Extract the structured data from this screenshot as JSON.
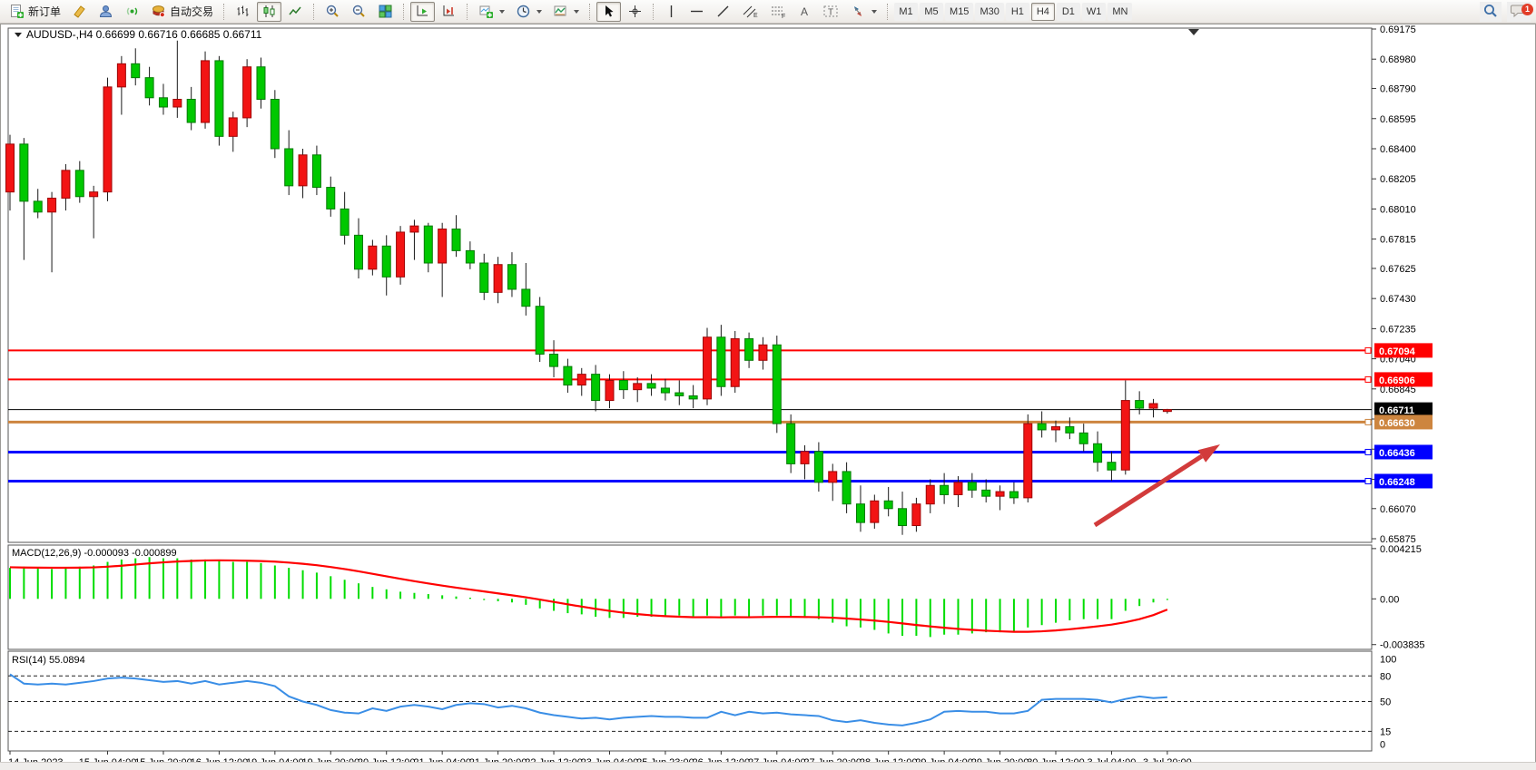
{
  "toolbar": {
    "labels": {
      "new_order": "新订单",
      "autotrading": "自动交易"
    },
    "glyphs": {
      "channel": "E",
      "fibo": "F",
      "text_tool": "A",
      "label_tool": "T"
    },
    "timeframes": [
      "M1",
      "M5",
      "M15",
      "M30",
      "H1",
      "H4",
      "D1",
      "W1",
      "MN"
    ],
    "active_timeframe": "H4",
    "notification_count": "1"
  },
  "chart": {
    "title_text": "AUDUSD-,H4  0.66699 0.66716 0.66685 0.66711",
    "symbol": "AUDUSD-,H4",
    "ohlc": {
      "open": "0.66699",
      "high": "0.66716",
      "low": "0.66685",
      "close": "0.66711"
    }
  },
  "chart_data": {
    "type": "candlestick",
    "symbol": "AUDUSD-",
    "timeframe": "H4",
    "price_axis_ticks": [
      "0.69175",
      "0.68980",
      "0.68790",
      "0.68595",
      "0.68400",
      "0.68205",
      "0.68010",
      "0.67815",
      "0.67625",
      "0.67430",
      "0.67235",
      "0.67040",
      "0.66845",
      "0.66650",
      "0.66455",
      "0.66260",
      "0.66070",
      "0.65875"
    ],
    "price_axis_range": [
      0.65875,
      0.69175
    ],
    "time_labels": [
      "14 Jun 2023",
      "15 Jun 04:00",
      "15 Jun 20:00",
      "16 Jun 12:00",
      "19 Jun 04:00",
      "19 Jun 20:00",
      "20 Jun 12:00",
      "21 Jun 04:00",
      "21 Jun 20:00",
      "22 Jun 12:00",
      "23 Jun 04:00",
      "25 Jun 23:00",
      "26 Jun 12:00",
      "27 Jun 04:00",
      "27 Jun 20:00",
      "28 Jun 12:00",
      "29 Jun 04:00",
      "29 Jun 20:00",
      "30 Jun 12:00",
      "3 Jul 04:00",
      "3 Jul 20:00"
    ],
    "time_label_candle_index": [
      0,
      7,
      11,
      15,
      19,
      23,
      27,
      31,
      35,
      39,
      43,
      47,
      51,
      55,
      59,
      63,
      67,
      71,
      75,
      79,
      83
    ],
    "hlines": [
      {
        "price": 0.67094,
        "label": "0.67094",
        "color": "#FF0000",
        "width": 2,
        "role": "resistance"
      },
      {
        "price": 0.66906,
        "label": "0.66906",
        "color": "#FF0000",
        "width": 2,
        "role": "resistance"
      },
      {
        "price": 0.66711,
        "label": "0.66711",
        "color": "#000000",
        "width": 1,
        "role": "current-price"
      },
      {
        "price": 0.6663,
        "label": "0.66630",
        "color": "#CD853F",
        "width": 3,
        "role": "level"
      },
      {
        "price": 0.66436,
        "label": "0.66436",
        "color": "#0000FF",
        "width": 3,
        "role": "support"
      },
      {
        "price": 0.66248,
        "label": "0.66248",
        "color": "#0000FF",
        "width": 3,
        "role": "support"
      }
    ],
    "candles": [
      [
        0.6812,
        0.6849,
        0.68,
        0.6843
      ],
      [
        0.6843,
        0.6847,
        0.6768,
        0.6806
      ],
      [
        0.6806,
        0.6814,
        0.6795,
        0.6799
      ],
      [
        0.6799,
        0.6812,
        0.676,
        0.6808
      ],
      [
        0.6808,
        0.683,
        0.68,
        0.6826
      ],
      [
        0.6826,
        0.6832,
        0.6805,
        0.6809
      ],
      [
        0.6809,
        0.6816,
        0.6782,
        0.6812
      ],
      [
        0.6812,
        0.6886,
        0.6806,
        0.688
      ],
      [
        0.688,
        0.69,
        0.6862,
        0.6895
      ],
      [
        0.6895,
        0.6905,
        0.6881,
        0.6886
      ],
      [
        0.6886,
        0.6893,
        0.6868,
        0.6873
      ],
      [
        0.6873,
        0.6882,
        0.6862,
        0.6867
      ],
      [
        0.6867,
        0.691,
        0.686,
        0.6872
      ],
      [
        0.6872,
        0.688,
        0.6852,
        0.6857
      ],
      [
        0.6857,
        0.6903,
        0.6853,
        0.6897
      ],
      [
        0.6897,
        0.69,
        0.6842,
        0.6848
      ],
      [
        0.6848,
        0.6864,
        0.6838,
        0.686
      ],
      [
        0.686,
        0.6898,
        0.6854,
        0.6893
      ],
      [
        0.6893,
        0.6899,
        0.6866,
        0.6872
      ],
      [
        0.6872,
        0.6878,
        0.6834,
        0.684
      ],
      [
        0.684,
        0.6852,
        0.681,
        0.6816
      ],
      [
        0.6816,
        0.684,
        0.6808,
        0.6836
      ],
      [
        0.6836,
        0.6842,
        0.681,
        0.6815
      ],
      [
        0.6815,
        0.6822,
        0.6796,
        0.6801
      ],
      [
        0.6801,
        0.6812,
        0.6778,
        0.6784
      ],
      [
        0.6784,
        0.6795,
        0.6756,
        0.6762
      ],
      [
        0.6762,
        0.6781,
        0.6758,
        0.6777
      ],
      [
        0.6777,
        0.6784,
        0.6745,
        0.6757
      ],
      [
        0.6757,
        0.679,
        0.6752,
        0.6786
      ],
      [
        0.6786,
        0.6794,
        0.6768,
        0.679
      ],
      [
        0.679,
        0.6792,
        0.676,
        0.6766
      ],
      [
        0.6766,
        0.6792,
        0.6744,
        0.6788
      ],
      [
        0.6788,
        0.6797,
        0.677,
        0.6774
      ],
      [
        0.6774,
        0.678,
        0.6762,
        0.6766
      ],
      [
        0.6766,
        0.6772,
        0.6742,
        0.6747
      ],
      [
        0.6747,
        0.677,
        0.674,
        0.6765
      ],
      [
        0.6765,
        0.6773,
        0.6744,
        0.6749
      ],
      [
        0.6749,
        0.6766,
        0.6732,
        0.6738
      ],
      [
        0.6738,
        0.6744,
        0.6702,
        0.6707
      ],
      [
        0.6707,
        0.6716,
        0.6692,
        0.6699
      ],
      [
        0.6699,
        0.6704,
        0.6682,
        0.6687
      ],
      [
        0.6687,
        0.6698,
        0.668,
        0.6694
      ],
      [
        0.6694,
        0.67,
        0.667,
        0.6677
      ],
      [
        0.6677,
        0.6694,
        0.6672,
        0.669
      ],
      [
        0.669,
        0.6696,
        0.6678,
        0.6684
      ],
      [
        0.6684,
        0.6692,
        0.6676,
        0.6688
      ],
      [
        0.6688,
        0.6694,
        0.668,
        0.6685
      ],
      [
        0.6685,
        0.6691,
        0.6677,
        0.6682
      ],
      [
        0.6682,
        0.669,
        0.6674,
        0.668
      ],
      [
        0.668,
        0.6687,
        0.6672,
        0.6678
      ],
      [
        0.6678,
        0.6724,
        0.6674,
        0.6718
      ],
      [
        0.6718,
        0.6726,
        0.668,
        0.6686
      ],
      [
        0.6686,
        0.6722,
        0.6682,
        0.6717
      ],
      [
        0.6717,
        0.6721,
        0.6698,
        0.6703
      ],
      [
        0.6703,
        0.6718,
        0.6697,
        0.6713
      ],
      [
        0.6713,
        0.6719,
        0.6656,
        0.6662
      ],
      [
        0.6662,
        0.6668,
        0.663,
        0.6636
      ],
      [
        0.6636,
        0.6648,
        0.6626,
        0.6644
      ],
      [
        0.6644,
        0.665,
        0.6618,
        0.6624
      ],
      [
        0.6624,
        0.6636,
        0.6612,
        0.6631
      ],
      [
        0.6631,
        0.6637,
        0.6604,
        0.661
      ],
      [
        0.661,
        0.6622,
        0.6592,
        0.6598
      ],
      [
        0.6598,
        0.6616,
        0.6594,
        0.6612
      ],
      [
        0.6612,
        0.6621,
        0.6602,
        0.6607
      ],
      [
        0.6607,
        0.6618,
        0.659,
        0.6596
      ],
      [
        0.6596,
        0.6614,
        0.6592,
        0.661
      ],
      [
        0.661,
        0.6626,
        0.6604,
        0.6622
      ],
      [
        0.6622,
        0.663,
        0.661,
        0.6616
      ],
      [
        0.6616,
        0.6628,
        0.6608,
        0.6624
      ],
      [
        0.6624,
        0.663,
        0.6614,
        0.6619
      ],
      [
        0.6619,
        0.6626,
        0.6611,
        0.6615
      ],
      [
        0.6615,
        0.6622,
        0.6606,
        0.6618
      ],
      [
        0.6618,
        0.6624,
        0.661,
        0.6614
      ],
      [
        0.6614,
        0.6668,
        0.6611,
        0.6662
      ],
      [
        0.6662,
        0.667,
        0.6653,
        0.6658
      ],
      [
        0.6658,
        0.6664,
        0.665,
        0.666
      ],
      [
        0.666,
        0.6666,
        0.6652,
        0.6656
      ],
      [
        0.6656,
        0.6662,
        0.6644,
        0.6649
      ],
      [
        0.6649,
        0.6657,
        0.6631,
        0.6637
      ],
      [
        0.6637,
        0.6644,
        0.6625,
        0.6632
      ],
      [
        0.6632,
        0.669,
        0.6629,
        0.6677
      ],
      [
        0.6677,
        0.6683,
        0.6668,
        0.6672
      ],
      [
        0.6672,
        0.6678,
        0.6666,
        0.6675
      ],
      [
        0.66699,
        0.66716,
        0.66685,
        0.66711
      ]
    ],
    "macd": {
      "label": "MACD(12,26,9) -0.000093 -0.000899",
      "params": "12,26,9",
      "main_value": "-0.000093",
      "signal_value": "-0.000899",
      "axis_labels": [
        "0.004215",
        "0.00",
        "-0.003835"
      ],
      "axis_values": [
        0.004215,
        0,
        -0.003835
      ],
      "main": [
        0.0026,
        0.0027,
        0.0026,
        0.0025,
        0.0026,
        0.0027,
        0.0028,
        0.0031,
        0.0033,
        0.0034,
        0.0035,
        0.0034,
        0.0034,
        0.0033,
        0.0033,
        0.0032,
        0.0031,
        0.0031,
        0.003,
        0.0028,
        0.0026,
        0.0024,
        0.0022,
        0.0019,
        0.0016,
        0.0013,
        0.001,
        0.0008,
        0.0006,
        0.0005,
        0.0004,
        0.0003,
        0.0002,
        0.0001,
        -0.0001,
        -0.0002,
        -0.0003,
        -0.0005,
        -0.0008,
        -0.001,
        -0.0012,
        -0.0013,
        -0.0015,
        -0.0016,
        -0.0016,
        -0.0015,
        -0.0015,
        -0.0014,
        -0.0014,
        -0.0015,
        -0.0014,
        -0.0015,
        -0.0014,
        -0.0015,
        -0.0014,
        -0.0014,
        -0.0015,
        -0.0016,
        -0.0017,
        -0.002,
        -0.0023,
        -0.0024,
        -0.0026,
        -0.0029,
        -0.0031,
        -0.0031,
        -0.0032,
        -0.003,
        -0.003,
        -0.0029,
        -0.0028,
        -0.0028,
        -0.0028,
        -0.0024,
        -0.0022,
        -0.002,
        -0.0018,
        -0.0017,
        -0.0017,
        -0.0017,
        -0.001,
        -0.0006,
        -0.0003,
        -9.3e-05
      ],
      "signal": [
        0.00265,
        0.00263,
        0.00262,
        0.00261,
        0.00261,
        0.00262,
        0.00264,
        0.0027,
        0.00278,
        0.00288,
        0.00298,
        0.00306,
        0.00313,
        0.00318,
        0.00322,
        0.00323,
        0.00322,
        0.0032,
        0.00317,
        0.00312,
        0.00304,
        0.00294,
        0.00282,
        0.00267,
        0.0025,
        0.00231,
        0.0021,
        0.00189,
        0.00168,
        0.00148,
        0.00129,
        0.00111,
        0.00094,
        0.00078,
        0.00062,
        0.00046,
        0.0003,
        0.00013,
        -6e-05,
        -0.00026,
        -0.00046,
        -0.00065,
        -0.00084,
        -0.00101,
        -0.00116,
        -0.00128,
        -0.00138,
        -0.00145,
        -0.0015,
        -0.00154,
        -0.00153,
        -0.00155,
        -0.00153,
        -0.00154,
        -0.00152,
        -0.00151,
        -0.00151,
        -0.00152,
        -0.00154,
        -0.00158,
        -0.00165,
        -0.00173,
        -0.00182,
        -0.00193,
        -0.00206,
        -0.00219,
        -0.00231,
        -0.00242,
        -0.00252,
        -0.0026,
        -0.00267,
        -0.00272,
        -0.00276,
        -0.00276,
        -0.00272,
        -0.00265,
        -0.00255,
        -0.00243,
        -0.0023,
        -0.00216,
        -0.00196,
        -0.0017,
        -0.00136,
        -0.000899
      ]
    },
    "rsi": {
      "label": "RSI(14) 55.0894",
      "period": "14",
      "value": "55.0894",
      "axis_labels": [
        "100",
        "80",
        "50",
        "15",
        "0"
      ],
      "axis_values": [
        100,
        80,
        50,
        15,
        0
      ],
      "levels": [
        80,
        50,
        15
      ],
      "values": [
        82,
        71,
        70,
        71,
        70,
        72,
        74,
        77,
        78,
        77,
        75,
        73,
        74,
        71,
        74,
        70,
        72,
        74,
        72,
        68,
        56,
        50,
        46,
        40,
        37,
        36,
        42,
        39,
        44,
        46,
        44,
        41,
        46,
        48,
        47,
        43,
        45,
        42,
        37,
        34,
        32,
        30,
        31,
        29,
        31,
        32,
        33,
        32,
        32,
        31,
        31,
        38,
        34,
        38,
        36,
        37,
        35,
        34,
        33,
        28,
        26,
        28,
        25,
        23,
        22,
        25,
        29,
        38,
        39,
        38,
        38,
        36,
        36,
        39,
        52,
        53,
        53,
        53,
        52,
        49,
        53,
        56,
        54,
        55.0894
      ]
    },
    "arrow_annotation": {
      "from": [
        1205,
        578
      ],
      "to": [
        1343,
        489
      ],
      "color": "#D23B3B"
    },
    "colors": {
      "candle_up": "#F21414",
      "candle_up_stroke": "#9E0606",
      "candle_down": "#00C800",
      "candle_down_stroke": "#057A05",
      "wick": "#1a1a1a",
      "macd_bar": "#00DD00",
      "macd_signal": "#FF0000",
      "rsi_line": "#3A8EE6",
      "axis_text": "#000000"
    },
    "legend_note": "red = bullish, green = bearish (CN color convention)"
  }
}
